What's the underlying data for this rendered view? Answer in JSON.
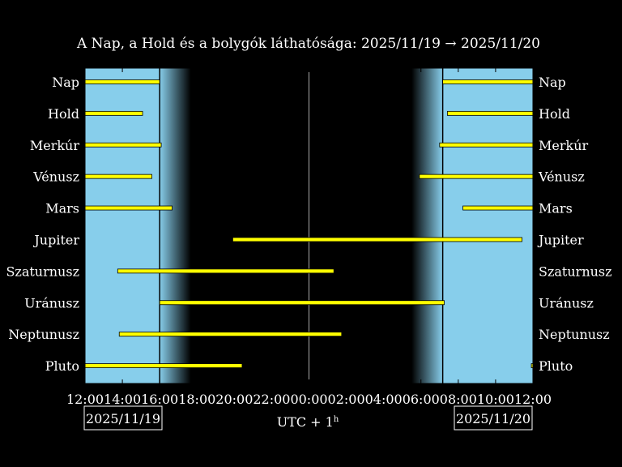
{
  "chart_data": {
    "type": "gantt",
    "title": "A Nap, a Hold és a bolygók láthatósága: 2025/11/19 → 2025/11/20",
    "x_start": "2025-11-19 12:00",
    "x_end": "2025-11-20 12:00",
    "xlabel": "UTC + 1",
    "xlabel_sup": "h",
    "date_left": "2025/11/19",
    "date_right": "2025/11/20",
    "x_tick_labels": [
      "12:00",
      "14:00",
      "16:00",
      "18:00",
      "20:00",
      "22:00",
      "00:00",
      "02:00",
      "04:00",
      "06:00",
      "08:00",
      "10:00",
      "12:00"
    ],
    "daylight": [
      {
        "start": "2025-11-19 12:00",
        "end": "2025-11-19 16:00"
      },
      {
        "start": "2025-11-20 07:10",
        "end": "2025-11-20 12:00"
      }
    ],
    "twilight": [
      {
        "start": "2025-11-19 16:00",
        "end": "2025-11-19 17:40"
      },
      {
        "start": "2025-11-20 05:30",
        "end": "2025-11-20 07:10"
      }
    ],
    "midnight_line": "2025-11-20 00:00",
    "rows": [
      {
        "name": "Pluto",
        "intervals": [
          {
            "start": "2025-11-19 12:00",
            "end": "2025-11-19 20:25"
          },
          {
            "start": "2025-11-20 11:55",
            "end": "2025-11-20 12:00"
          }
        ]
      },
      {
        "name": "Neptunusz",
        "intervals": [
          {
            "start": "2025-11-19 13:50",
            "end": "2025-11-20 01:45"
          }
        ]
      },
      {
        "name": "Uránusz",
        "intervals": [
          {
            "start": "2025-11-19 16:00",
            "end": "2025-11-20 07:15"
          }
        ]
      },
      {
        "name": "Szaturnusz",
        "intervals": [
          {
            "start": "2025-11-19 13:45",
            "end": "2025-11-20 01:20"
          }
        ]
      },
      {
        "name": "Jupiter",
        "intervals": [
          {
            "start": "2025-11-19 19:55",
            "end": "2025-11-20 11:25"
          }
        ]
      },
      {
        "name": "Mars",
        "intervals": [
          {
            "start": "2025-11-19 12:00",
            "end": "2025-11-19 16:40"
          },
          {
            "start": "2025-11-20 08:15",
            "end": "2025-11-20 12:00"
          }
        ]
      },
      {
        "name": "Vénusz",
        "intervals": [
          {
            "start": "2025-11-19 12:00",
            "end": "2025-11-19 15:35"
          },
          {
            "start": "2025-11-20 05:55",
            "end": "2025-11-20 12:00"
          }
        ]
      },
      {
        "name": "Merkúr",
        "intervals": [
          {
            "start": "2025-11-19 12:00",
            "end": "2025-11-19 16:05"
          },
          {
            "start": "2025-11-20 07:00",
            "end": "2025-11-20 12:00"
          }
        ]
      },
      {
        "name": "Hold",
        "intervals": [
          {
            "start": "2025-11-19 12:00",
            "end": "2025-11-19 15:05"
          },
          {
            "start": "2025-11-20 07:25",
            "end": "2025-11-20 12:00"
          }
        ]
      },
      {
        "name": "Nap",
        "intervals": [
          {
            "start": "2025-11-19 12:00",
            "end": "2025-11-19 16:00"
          },
          {
            "start": "2025-11-20 07:10",
            "end": "2025-11-20 12:00"
          }
        ]
      }
    ],
    "colors": {
      "background": "#000000",
      "daylight": "#87CEEB",
      "bar": "#FFFF00",
      "bar_edge": "#000000",
      "text": "#FFFFFF",
      "midnight_line": "#AAAAAA"
    }
  }
}
